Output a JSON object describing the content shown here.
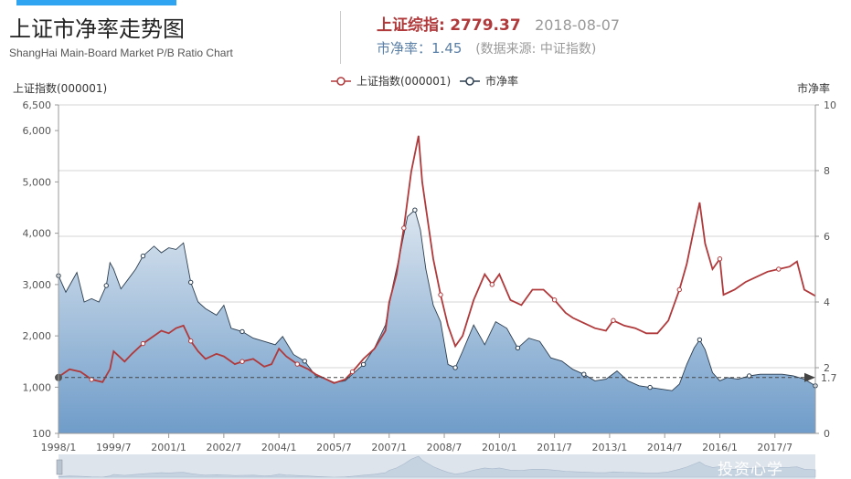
{
  "header": {
    "title": "上证市净率走势图",
    "subtitle": "ShangHai Main-Board Market P/B Ratio Chart",
    "index_label": "上证综指:",
    "index_value": "2779.37",
    "date": "2018-08-07",
    "pb_label": "市净率：",
    "pb_value": "1.45",
    "source": "(数据来源: 中证指数)"
  },
  "watermark": "投资心学",
  "colors": {
    "index_line": "#b0393b",
    "pb_line": "#2c3e50",
    "area_top": "#dbe5ef",
    "area_bottom": "#6f9cc9",
    "accent": "#2fa4f0"
  },
  "chart_data": {
    "type": "line",
    "ylabel_left": "上证指数(000001)",
    "ylabel_right": "市净率",
    "legend": [
      "上证指数(000001)",
      "市净率"
    ],
    "legend_position": "top-center",
    "left_axis": {
      "min": 100,
      "max": 6500,
      "ticks": [
        "6,500",
        "6,000",
        "5,000",
        "4,000",
        "3,000",
        "2,000",
        "1,000",
        "100"
      ],
      "tick_values": [
        6500,
        6000,
        5000,
        4000,
        3000,
        2000,
        1000,
        100
      ]
    },
    "right_axis": {
      "min": 0,
      "max": 10,
      "ticks": [
        "10",
        "8",
        "6",
        "4",
        "2",
        "0"
      ],
      "tick_values": [
        10,
        8,
        6,
        4,
        2,
        0
      ]
    },
    "x_labels": [
      "1998/1",
      "1999/7",
      "2001/1",
      "2002/7",
      "2004/1",
      "2005/7",
      "2007/1",
      "2008/7",
      "2010/1",
      "2011/7",
      "2013/1",
      "2014/7",
      "2016/1",
      "2017/7"
    ],
    "x_label_times": [
      1998.0,
      1999.5,
      2001.0,
      2002.5,
      2004.0,
      2005.5,
      2007.0,
      2008.5,
      2010.0,
      2011.5,
      2013.0,
      2014.5,
      2016.0,
      2017.5
    ],
    "x_range": [
      1998.0,
      2018.6
    ],
    "reference_line": {
      "value": 1.7,
      "label": "1.7",
      "axis": "right",
      "style": "dashed"
    },
    "grid": true,
    "series": [
      {
        "name": "上证指数(000001)",
        "axis": "left",
        "x": [
          1998.0,
          1998.3,
          1998.6,
          1998.9,
          1999.2,
          1999.4,
          1999.5,
          1999.8,
          2000.0,
          2000.3,
          2000.6,
          2000.8,
          2001.0,
          2001.2,
          2001.4,
          2001.6,
          2001.8,
          2002.0,
          2002.3,
          2002.5,
          2002.8,
          2003.0,
          2003.3,
          2003.6,
          2003.8,
          2004.0,
          2004.2,
          2004.5,
          2004.8,
          2005.0,
          2005.3,
          2005.5,
          2005.8,
          2006.0,
          2006.3,
          2006.6,
          2006.9,
          2007.0,
          2007.2,
          2007.4,
          2007.6,
          2007.8,
          2007.9,
          2008.0,
          2008.2,
          2008.4,
          2008.6,
          2008.8,
          2009.0,
          2009.3,
          2009.6,
          2009.8,
          2010.0,
          2010.3,
          2010.6,
          2010.9,
          2011.2,
          2011.5,
          2011.8,
          2012.0,
          2012.3,
          2012.6,
          2012.9,
          2013.1,
          2013.4,
          2013.7,
          2014.0,
          2014.3,
          2014.6,
          2014.9,
          2015.1,
          2015.3,
          2015.45,
          2015.6,
          2015.8,
          2016.0,
          2016.1,
          2016.4,
          2016.7,
          2017.0,
          2017.3,
          2017.6,
          2017.9,
          2018.1,
          2018.3,
          2018.6
        ],
        "y": [
          1200,
          1350,
          1300,
          1150,
          1100,
          1350,
          1700,
          1500,
          1650,
          1850,
          2000,
          2100,
          2050,
          2150,
          2200,
          1900,
          1700,
          1550,
          1650,
          1600,
          1450,
          1500,
          1550,
          1400,
          1450,
          1750,
          1600,
          1450,
          1350,
          1250,
          1150,
          1080,
          1150,
          1300,
          1550,
          1750,
          2100,
          2650,
          3200,
          4100,
          5200,
          5900,
          5000,
          4500,
          3500,
          2800,
          2200,
          1800,
          2000,
          2700,
          3200,
          3000,
          3200,
          2700,
          2600,
          2900,
          2900,
          2700,
          2450,
          2350,
          2250,
          2150,
          2100,
          2300,
          2200,
          2150,
          2050,
          2050,
          2300,
          2900,
          3400,
          4100,
          4600,
          3800,
          3300,
          3500,
          2800,
          2900,
          3050,
          3150,
          3250,
          3300,
          3350,
          3450,
          2900,
          2780
        ]
      },
      {
        "name": "市净率",
        "axis": "right",
        "x": [
          1998.0,
          1998.2,
          1998.5,
          1998.7,
          1998.9,
          1999.1,
          1999.3,
          1999.4,
          1999.5,
          1999.7,
          1999.9,
          2000.1,
          2000.3,
          2000.6,
          2000.8,
          2001.0,
          2001.2,
          2001.4,
          2001.6,
          2001.8,
          2002.0,
          2002.3,
          2002.5,
          2002.7,
          2003.0,
          2003.3,
          2003.6,
          2003.9,
          2004.1,
          2004.4,
          2004.7,
          2005.0,
          2005.3,
          2005.5,
          2005.8,
          2006.0,
          2006.3,
          2006.6,
          2006.9,
          2007.1,
          2007.3,
          2007.5,
          2007.7,
          2007.85,
          2008.0,
          2008.2,
          2008.4,
          2008.6,
          2008.8,
          2009.0,
          2009.3,
          2009.6,
          2009.9,
          2010.2,
          2010.5,
          2010.8,
          2011.1,
          2011.4,
          2011.7,
          2012.0,
          2012.3,
          2012.6,
          2012.9,
          2013.2,
          2013.5,
          2013.8,
          2014.1,
          2014.4,
          2014.7,
          2014.9,
          2015.1,
          2015.3,
          2015.45,
          2015.6,
          2015.8,
          2016.0,
          2016.2,
          2016.5,
          2016.8,
          2017.1,
          2017.4,
          2017.7,
          2018.0,
          2018.3,
          2018.6
        ],
        "y": [
          4.8,
          4.3,
          4.9,
          4.0,
          4.1,
          4.0,
          4.5,
          5.2,
          5.0,
          4.4,
          4.7,
          5.0,
          5.4,
          5.7,
          5.5,
          5.65,
          5.6,
          5.8,
          4.6,
          4.0,
          3.8,
          3.6,
          3.9,
          3.2,
          3.1,
          2.9,
          2.8,
          2.7,
          2.95,
          2.4,
          2.2,
          1.75,
          1.65,
          1.55,
          1.6,
          1.8,
          2.1,
          2.6,
          3.3,
          4.5,
          5.5,
          6.6,
          6.8,
          6.2,
          5.0,
          3.9,
          3.4,
          2.1,
          2.0,
          2.5,
          3.3,
          2.7,
          3.4,
          3.2,
          2.6,
          2.9,
          2.8,
          2.3,
          2.2,
          1.95,
          1.8,
          1.6,
          1.65,
          1.9,
          1.6,
          1.45,
          1.4,
          1.35,
          1.3,
          1.5,
          2.1,
          2.6,
          2.85,
          2.55,
          1.85,
          1.6,
          1.7,
          1.65,
          1.75,
          1.8,
          1.8,
          1.8,
          1.75,
          1.65,
          1.45
        ]
      }
    ]
  }
}
